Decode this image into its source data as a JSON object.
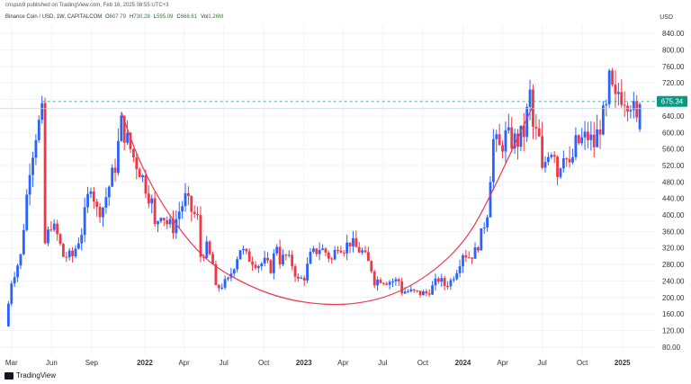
{
  "header": {
    "publisher": "crispus9 published on TradingView.com, Feb 16, 2025 08:55 UTC+3",
    "symbol": "Binance Coin / USD, 1W, CAPITALCOM",
    "ohlc": [
      {
        "k": "O",
        "v": "607.79"
      },
      {
        "k": "H",
        "v": "730.28"
      },
      {
        "k": "L",
        "v": "595.09"
      },
      {
        "k": "C",
        "v": "668.61"
      },
      {
        "k": "Vol",
        "v": "1.26M"
      }
    ]
  },
  "brand": {
    "name": "TradingView"
  },
  "colors": {
    "up": "#2962ff",
    "down": "#f23645",
    "curve": "#f23645",
    "tag": "#089981",
    "dashed": "#089981",
    "grid": "#f0f3fa"
  },
  "chart_data": {
    "type": "candlestick",
    "unit": "USD",
    "ylim": [
      60,
      860
    ],
    "y_ticks": [
      80,
      120,
      160,
      200,
      240,
      280,
      320,
      360,
      400,
      440,
      480,
      520,
      560,
      600,
      640,
      680,
      720,
      760,
      800,
      840
    ],
    "y_tick_labels": [
      "80.00",
      "120.00",
      "160.00",
      "200.00",
      "240.00",
      "280.00",
      "320.00",
      "360.00",
      "400.00",
      "440.00",
      "480.00",
      "520.00",
      "560.00",
      "600.00",
      "640.00",
      "680.00",
      "720.00",
      "760.00",
      "800.00",
      "840.00"
    ],
    "x_labels": [
      {
        "date": "2021-03-01",
        "label": "Mar",
        "bold": false
      },
      {
        "date": "2021-06-01",
        "label": "Jun",
        "bold": false
      },
      {
        "date": "2021-09-01",
        "label": "Sep",
        "bold": false
      },
      {
        "date": "2022-01-01",
        "label": "2022",
        "bold": true
      },
      {
        "date": "2022-04-01",
        "label": "Apr",
        "bold": false
      },
      {
        "date": "2022-07-01",
        "label": "Jul",
        "bold": false
      },
      {
        "date": "2022-10-01",
        "label": "Oct",
        "bold": false
      },
      {
        "date": "2023-01-01",
        "label": "2023",
        "bold": true
      },
      {
        "date": "2023-04-01",
        "label": "Apr",
        "bold": false
      },
      {
        "date": "2023-07-01",
        "label": "Jul",
        "bold": false
      },
      {
        "date": "2023-10-01",
        "label": "Oct",
        "bold": false
      },
      {
        "date": "2024-01-01",
        "label": "2024",
        "bold": true
      },
      {
        "date": "2024-04-01",
        "label": "Apr",
        "bold": false
      },
      {
        "date": "2024-07-01",
        "label": "Jul",
        "bold": false
      },
      {
        "date": "2024-10-01",
        "label": "Oct",
        "bold": false
      },
      {
        "date": "2025-01-01",
        "label": "2025",
        "bold": true
      }
    ],
    "current_price": {
      "value": 675.34,
      "label": "675.34"
    },
    "resistance_level": 675,
    "close_path": [
      {
        "date": "2021-02-15",
        "close": 130
      },
      {
        "date": "2021-03-01",
        "close": 240
      },
      {
        "date": "2021-03-22",
        "close": 300
      },
      {
        "date": "2021-04-12",
        "close": 520
      },
      {
        "date": "2021-04-26",
        "close": 600
      },
      {
        "date": "2021-05-10",
        "close": 640
      },
      {
        "date": "2021-05-17",
        "close": 330
      },
      {
        "date": "2021-05-31",
        "close": 380
      },
      {
        "date": "2021-06-14",
        "close": 350
      },
      {
        "date": "2021-06-28",
        "close": 300
      },
      {
        "date": "2021-07-19",
        "close": 300
      },
      {
        "date": "2021-08-09",
        "close": 360
      },
      {
        "date": "2021-08-30",
        "close": 480
      },
      {
        "date": "2021-09-13",
        "close": 410
      },
      {
        "date": "2021-09-27",
        "close": 420
      },
      {
        "date": "2021-10-11",
        "close": 470
      },
      {
        "date": "2021-10-25",
        "close": 520
      },
      {
        "date": "2021-11-08",
        "close": 620
      },
      {
        "date": "2021-11-22",
        "close": 580
      },
      {
        "date": "2021-12-06",
        "close": 540
      },
      {
        "date": "2021-12-20",
        "close": 510
      },
      {
        "date": "2022-01-03",
        "close": 470
      },
      {
        "date": "2022-01-17",
        "close": 430
      },
      {
        "date": "2022-01-24",
        "close": 370
      },
      {
        "date": "2022-02-07",
        "close": 410
      },
      {
        "date": "2022-02-21",
        "close": 380
      },
      {
        "date": "2022-03-07",
        "close": 370
      },
      {
        "date": "2022-03-21",
        "close": 410
      },
      {
        "date": "2022-04-04",
        "close": 440
      },
      {
        "date": "2022-04-18",
        "close": 410
      },
      {
        "date": "2022-05-02",
        "close": 390
      },
      {
        "date": "2022-05-09",
        "close": 300
      },
      {
        "date": "2022-05-23",
        "close": 320
      },
      {
        "date": "2022-06-06",
        "close": 280
      },
      {
        "date": "2022-06-13",
        "close": 220
      },
      {
        "date": "2022-06-27",
        "close": 230
      },
      {
        "date": "2022-07-11",
        "close": 240
      },
      {
        "date": "2022-07-25",
        "close": 280
      },
      {
        "date": "2022-08-08",
        "close": 320
      },
      {
        "date": "2022-08-22",
        "close": 300
      },
      {
        "date": "2022-09-05",
        "close": 290
      },
      {
        "date": "2022-09-19",
        "close": 280
      },
      {
        "date": "2022-10-03",
        "close": 285
      },
      {
        "date": "2022-10-17",
        "close": 270
      },
      {
        "date": "2022-10-31",
        "close": 330
      },
      {
        "date": "2022-11-07",
        "close": 290
      },
      {
        "date": "2022-11-21",
        "close": 300
      },
      {
        "date": "2022-12-05",
        "close": 280
      },
      {
        "date": "2022-12-19",
        "close": 240
      },
      {
        "date": "2023-01-02",
        "close": 250
      },
      {
        "date": "2023-01-16",
        "close": 300
      },
      {
        "date": "2023-02-06",
        "close": 320
      },
      {
        "date": "2023-02-20",
        "close": 310
      },
      {
        "date": "2023-03-06",
        "close": 290
      },
      {
        "date": "2023-03-20",
        "close": 330
      },
      {
        "date": "2023-04-03",
        "close": 320
      },
      {
        "date": "2023-04-17",
        "close": 335
      },
      {
        "date": "2023-05-01",
        "close": 320
      },
      {
        "date": "2023-05-15",
        "close": 310
      },
      {
        "date": "2023-06-05",
        "close": 270
      },
      {
        "date": "2023-06-12",
        "close": 240
      },
      {
        "date": "2023-06-26",
        "close": 245
      },
      {
        "date": "2023-07-10",
        "close": 240
      },
      {
        "date": "2023-07-24",
        "close": 240
      },
      {
        "date": "2023-08-07",
        "close": 240
      },
      {
        "date": "2023-08-14",
        "close": 215
      },
      {
        "date": "2023-08-28",
        "close": 215
      },
      {
        "date": "2023-09-11",
        "close": 212
      },
      {
        "date": "2023-09-25",
        "close": 210
      },
      {
        "date": "2023-10-09",
        "close": 210
      },
      {
        "date": "2023-10-23",
        "close": 225
      },
      {
        "date": "2023-11-06",
        "close": 245
      },
      {
        "date": "2023-11-20",
        "close": 230
      },
      {
        "date": "2023-12-04",
        "close": 240
      },
      {
        "date": "2023-12-18",
        "close": 270
      },
      {
        "date": "2024-01-01",
        "close": 310
      },
      {
        "date": "2024-01-15",
        "close": 300
      },
      {
        "date": "2024-01-29",
        "close": 310
      },
      {
        "date": "2024-02-12",
        "close": 350
      },
      {
        "date": "2024-02-26",
        "close": 410
      },
      {
        "date": "2024-03-04",
        "close": 500
      },
      {
        "date": "2024-03-11",
        "close": 580
      },
      {
        "date": "2024-03-25",
        "close": 560
      },
      {
        "date": "2024-04-08",
        "close": 590
      },
      {
        "date": "2024-04-22",
        "close": 580
      },
      {
        "date": "2024-05-06",
        "close": 580
      },
      {
        "date": "2024-05-20",
        "close": 600
      },
      {
        "date": "2024-06-03",
        "close": 690
      },
      {
        "date": "2024-06-10",
        "close": 610
      },
      {
        "date": "2024-06-24",
        "close": 580
      },
      {
        "date": "2024-07-01",
        "close": 500
      },
      {
        "date": "2024-07-15",
        "close": 560
      },
      {
        "date": "2024-07-29",
        "close": 560
      },
      {
        "date": "2024-08-05",
        "close": 500
      },
      {
        "date": "2024-08-19",
        "close": 560
      },
      {
        "date": "2024-09-02",
        "close": 510
      },
      {
        "date": "2024-09-16",
        "close": 570
      },
      {
        "date": "2024-09-30",
        "close": 580
      },
      {
        "date": "2024-10-14",
        "close": 590
      },
      {
        "date": "2024-10-28",
        "close": 570
      },
      {
        "date": "2024-11-11",
        "close": 620
      },
      {
        "date": "2024-11-25",
        "close": 650
      },
      {
        "date": "2024-12-02",
        "close": 720
      },
      {
        "date": "2024-12-16",
        "close": 670
      },
      {
        "date": "2024-12-23",
        "close": 700
      },
      {
        "date": "2025-01-06",
        "close": 690
      },
      {
        "date": "2025-01-20",
        "close": 680
      },
      {
        "date": "2025-02-03",
        "close": 620
      },
      {
        "date": "2025-02-10",
        "close": 610
      },
      {
        "date": "2025-02-16",
        "close": 668
      }
    ],
    "curve_points": [
      {
        "date": "2021-11-08",
        "value": 650
      },
      {
        "date": "2021-12-15",
        "value": 540
      },
      {
        "date": "2022-02-01",
        "value": 440
      },
      {
        "date": "2022-04-01",
        "value": 350
      },
      {
        "date": "2022-06-01",
        "value": 280
      },
      {
        "date": "2022-09-01",
        "value": 225
      },
      {
        "date": "2022-12-01",
        "value": 192
      },
      {
        "date": "2023-03-15",
        "value": 180
      },
      {
        "date": "2023-06-15",
        "value": 192
      },
      {
        "date": "2023-09-01",
        "value": 225
      },
      {
        "date": "2023-11-15",
        "value": 280
      },
      {
        "date": "2024-01-15",
        "value": 350
      },
      {
        "date": "2024-03-01",
        "value": 440
      },
      {
        "date": "2024-04-15",
        "value": 540
      },
      {
        "date": "2024-06-10",
        "value": 665
      }
    ]
  }
}
